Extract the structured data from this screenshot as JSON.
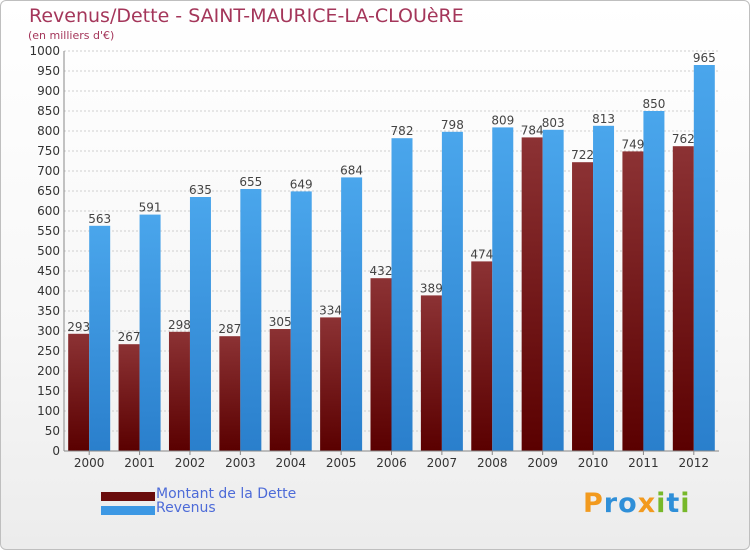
{
  "chart_data": {
    "type": "bar",
    "title": "Revenus/Dette - SAINT-MAURICE-LA-CLOUèRE",
    "subtitle": "(en milliers d'€)",
    "xlabel": "",
    "ylabel": "",
    "ylim": [
      0,
      1000
    ],
    "yticks": [
      0,
      50,
      100,
      150,
      200,
      250,
      300,
      350,
      400,
      450,
      500,
      550,
      600,
      650,
      700,
      750,
      800,
      850,
      900,
      950,
      1000
    ],
    "grid": true,
    "legend_position": "bottom-left",
    "categories": [
      "2000",
      "2001",
      "2002",
      "2003",
      "2004",
      "2005",
      "2006",
      "2007",
      "2008",
      "2009",
      "2010",
      "2011",
      "2012"
    ],
    "series": [
      {
        "name": "Montant de la Dette",
        "color": "#7a1818",
        "values": [
          293,
          267,
          298,
          287,
          305,
          334,
          432,
          389,
          474,
          784,
          722,
          749,
          762
        ]
      },
      {
        "name": "Revenus",
        "color": "#3d98e4",
        "values": [
          563,
          591,
          635,
          655,
          649,
          684,
          782,
          798,
          809,
          803,
          813,
          850,
          965
        ]
      }
    ]
  },
  "logo": {
    "text": "Proxiti",
    "colors": [
      "#f29a1e",
      "#2f8fd8",
      "#2f8fd8",
      "#f29a1e",
      "#77b82a",
      "#2f8fd8",
      "#77b82a"
    ]
  }
}
